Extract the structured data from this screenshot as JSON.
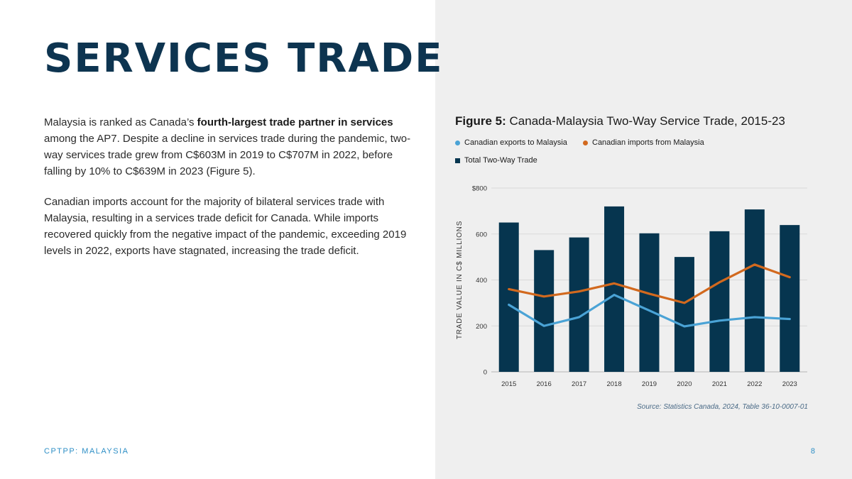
{
  "page": {
    "title": "SERVICES TRADE",
    "paragraph1_pre": "Malaysia is ranked as Canada’s ",
    "paragraph1_bold": "fourth-largest trade partner in services",
    "paragraph1_post": " among the AP7. Despite a decline in services trade during the pandemic, two-way services trade grew from C$603M in 2019 to C$707M in 2022, before falling by 10% to C$639M in 2023 (Figure 5).",
    "paragraph2": "Canadian imports account for the majority of bilateral services trade with Malaysia, resulting in a services trade deficit for Canada. While imports recovered quickly from the negative impact of the pandemic, exceeding 2019 levels in 2022, exports have stagnated, increasing the trade deficit.",
    "footer_left": "CPTPP: MALAYSIA",
    "page_number": "8"
  },
  "colors": {
    "bar": "#06354f",
    "exports": "#4aa3d6",
    "imports": "#d2691e",
    "title": "#0d3450",
    "accent": "#2e8fc6"
  },
  "chart_data": {
    "type": "bar",
    "figure_label": "Figure 5:",
    "title": "Canada-Malaysia Two-Way Service Trade, 2015-23",
    "categories": [
      "2015",
      "2016",
      "2017",
      "2018",
      "2019",
      "2020",
      "2021",
      "2022",
      "2023"
    ],
    "series": [
      {
        "name": "Total Two-Way Trade",
        "kind": "bar",
        "values": [
          650,
          530,
          585,
          720,
          603,
          500,
          612,
          707,
          639
        ]
      },
      {
        "name": "Canadian exports to Malaysia",
        "kind": "line",
        "values": [
          292,
          200,
          238,
          335,
          267,
          198,
          223,
          238,
          230
        ]
      },
      {
        "name": "Canadian imports from Malaysia",
        "kind": "line",
        "values": [
          360,
          328,
          350,
          385,
          340,
          300,
          390,
          467,
          412
        ]
      }
    ],
    "legend_order": [
      "Canadian exports to Malaysia",
      "Canadian imports from Malaysia",
      "Total Two-Way Trade"
    ],
    "ylabel": "TRADE VALUE IN C$ MILLIONS",
    "yticks": [
      "0",
      "200",
      "400",
      "600",
      "$800"
    ],
    "ylim": [
      0,
      800
    ],
    "grid": true,
    "source": "Source: Statistics Canada, 2024, Table 36-10-0007-01"
  }
}
